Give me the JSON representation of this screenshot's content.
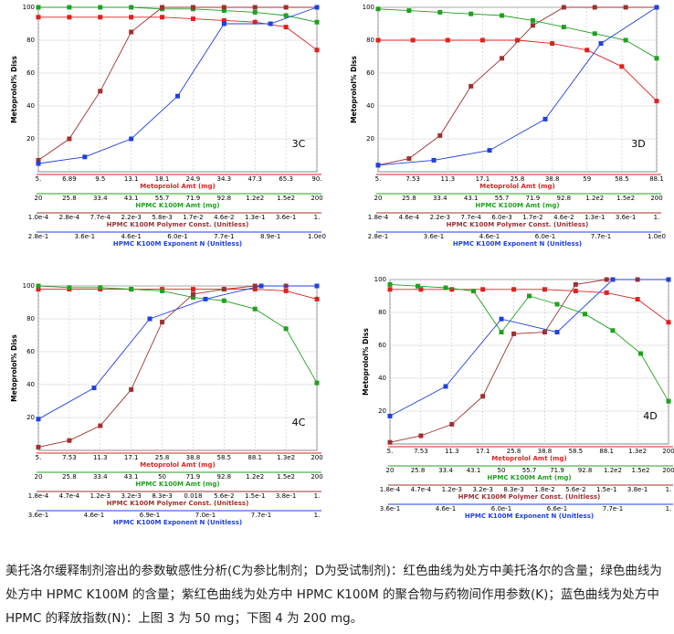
{
  "chart_data": [
    {
      "type": "line",
      "label": "3C",
      "y_label": "Metoprolol% Diss",
      "ylim": [
        0,
        100
      ],
      "yticks": [
        20,
        40,
        60,
        80,
        100
      ],
      "series": [
        {
          "name": "Metoprolol Amt (mg)",
          "color": "#e02020",
          "categories": [
            "5.",
            "6.89",
            "9.5",
            "13.1",
            "18.1",
            "24.9",
            "34.3",
            "47.3",
            "65.3",
            "90."
          ],
          "values": [
            94,
            94,
            94,
            94,
            94,
            93,
            92,
            91,
            88,
            74
          ]
        },
        {
          "name": "HPMC K100M Amt (mg)",
          "color": "#20a020",
          "categories": [
            "20",
            "25.8",
            "33.4",
            "43.1",
            "55.7",
            "71.9",
            "92.8",
            "1.2e2",
            "1.5e2",
            "200"
          ],
          "values": [
            100,
            100,
            100,
            100,
            99,
            99,
            98,
            97,
            95,
            91
          ]
        },
        {
          "name": "HPMC K100M Polymer Const. (Unitless)",
          "color": "#a03030",
          "categories": [
            "1.0e-4",
            "2.8e-4",
            "7.7e-4",
            "2.2e-3",
            "5.8e-3",
            "1.7e-2",
            "4.6e-2",
            "1.3e-1",
            "3.6e-1",
            "1."
          ],
          "values": [
            7,
            20,
            49,
            85,
            100,
            100,
            100,
            100,
            100,
            100
          ]
        },
        {
          "name": "HPMC K100M Exponent N (Unitless)",
          "color": "#2040e0",
          "categories": [
            "2.8e-1",
            "3.6e-1",
            "4.6e-1",
            "6.0e-1",
            "7.7e-1",
            "8.9e-1",
            "1.0e0"
          ],
          "values": [
            5,
            9,
            20,
            46,
            90,
            90,
            100
          ]
        }
      ]
    },
    {
      "type": "line",
      "label": "3D",
      "y_label": "Metoprolol% Diss",
      "ylim": [
        0,
        100
      ],
      "yticks": [
        20,
        40,
        60,
        80,
        100
      ],
      "series": [
        {
          "name": "Metoprolol Amt (mg)",
          "color": "#e02020",
          "categories": [
            "5.",
            "7.53",
            "11.3",
            "17.1",
            "25.8",
            "38.8",
            "59",
            "58.5",
            "88.1"
          ],
          "values": [
            80,
            80,
            80,
            80,
            80,
            78,
            74,
            64,
            43
          ]
        },
        {
          "name": "HPMC K100M Amt (mg)",
          "color": "#20a020",
          "categories": [
            "20",
            "25.8",
            "33.4",
            "43.1",
            "55.7",
            "71.9",
            "92.8",
            "1.2e2",
            "1.5e2",
            "200"
          ],
          "values": [
            99,
            98,
            97,
            96,
            95,
            92,
            88,
            84,
            80,
            69
          ]
        },
        {
          "name": "HPMC K100M Polymer Const. (Unitless)",
          "color": "#a03030",
          "categories": [
            "1.8e-4",
            "4.6e-4",
            "2.2e-3",
            "7.7e-4",
            "6.0e-3",
            "1.7e-2",
            "4.6e-2",
            "1.3e-1",
            "3.6e-1",
            "1."
          ],
          "values": [
            4,
            8,
            22,
            52,
            69,
            89,
            100,
            100,
            100,
            100
          ]
        },
        {
          "name": "HPMC K100M Exponent N (Unitless)",
          "color": "#2040e0",
          "categories": [
            "2.8e-1",
            "3.6e-1",
            "4.6e-1",
            "6.0e-1",
            "7.7e-1",
            "1.0e0"
          ],
          "values": [
            4,
            7,
            13,
            32,
            78,
            100
          ]
        }
      ]
    },
    {
      "type": "line",
      "label": "4C",
      "y_label": "Metoprolol% Diss",
      "ylim": [
        0,
        100
      ],
      "yticks": [
        20,
        40,
        60,
        80,
        100
      ],
      "series": [
        {
          "name": "Metoprolol Amt (mg)",
          "color": "#e02020",
          "categories": [
            "5.",
            "7.53",
            "11.3",
            "17.1",
            "25.8",
            "38.8",
            "58.5",
            "88.1",
            "1.3e2",
            "200"
          ],
          "values": [
            98,
            98,
            98,
            98,
            98,
            98,
            98,
            98,
            97,
            92
          ]
        },
        {
          "name": "HPMC K100M Amt (mg)",
          "color": "#20a020",
          "categories": [
            "20",
            "25.8",
            "33.4",
            "43.1",
            "50",
            "71.9",
            "92.8",
            "1.2e2",
            "1.5e2",
            "200"
          ],
          "values": [
            100,
            99,
            99,
            98,
            97,
            93,
            91,
            86,
            74,
            41
          ]
        },
        {
          "name": "HPMC K100M Polymer Const. (Unitless)",
          "color": "#a03030",
          "categories": [
            "1.8e-4",
            "4.7e-4",
            "1.2e-3",
            "3.2e-3",
            "8.3e-3",
            "0.018",
            "5.6e-2",
            "1.5e-1",
            "3.8e-1",
            "1."
          ],
          "values": [
            2,
            6,
            15,
            37,
            78,
            95,
            98,
            100,
            100,
            100
          ]
        },
        {
          "name": "HPMC K100M Exponent N (Unitless)",
          "color": "#2040e0",
          "categories": [
            "3.6e-1",
            "4.6e-1",
            "6.9e-1",
            "7.0e-1",
            "7.7e-1",
            "1."
          ],
          "values": [
            19,
            38,
            80,
            92,
            100,
            100
          ]
        }
      ]
    },
    {
      "type": "line",
      "label": "4D",
      "y_label": "Metoprolol% Diss",
      "ylim": [
        0,
        100
      ],
      "yticks": [
        20,
        40,
        60,
        80,
        100
      ],
      "series": [
        {
          "name": "Metoprolol Amt (mg)",
          "color": "#e02020",
          "categories": [
            "5.",
            "7.53",
            "11.3",
            "17.1",
            "25.8",
            "38.8",
            "58.5",
            "88.1",
            "1.3e2",
            "200"
          ],
          "values": [
            94,
            94,
            94,
            94,
            94,
            94,
            93,
            92,
            88,
            74
          ]
        },
        {
          "name": "HPMC K100M Amt (mg)",
          "color": "#20a020",
          "categories": [
            "20",
            "25.8",
            "33.4",
            "43.1",
            "50",
            "55.7",
            "71.9",
            "92.8",
            "1.2e2",
            "1.5e2",
            "200"
          ],
          "values": [
            97,
            96,
            95,
            93,
            68,
            90,
            85,
            79,
            69,
            55,
            26
          ]
        },
        {
          "name": "HPMC K100M Polymer Const. (Unitless)",
          "color": "#a03030",
          "categories": [
            "1.8e-4",
            "4.7e-4",
            "1.2e-3",
            "3.2e-3",
            "8.3e-3",
            "1.8e-2",
            "5.6e-2",
            "1.5e-1",
            "3.8e-1",
            "1."
          ],
          "values": [
            1,
            5,
            12,
            29,
            67,
            68,
            97,
            100,
            100,
            100
          ]
        },
        {
          "name": "HPMC K100M Exponent N (Unitless)",
          "color": "#2040e0",
          "categories": [
            "3.6e-1",
            "4.6e-1",
            "6.0e-1",
            "6.6e-1",
            "7.7e-1",
            "1."
          ],
          "values": [
            17,
            35,
            76,
            68,
            100,
            100
          ]
        }
      ]
    }
  ],
  "caption": "美托洛尔缓释制剂溶出的参数敏感性分析(C为参比制剂；D为受试制剂)：红色曲线为处方中美托洛尔的含量；绿色曲线为处方中 HPMC K100M 的含量；紫红色曲线为处方中 HPMC K100M 的聚合物与药物间作用参数(K)；蓝色曲线为处方中 HPMC 的释放指数(N)：上图 3 为 50 mg；下图 4 为 200 mg。"
}
